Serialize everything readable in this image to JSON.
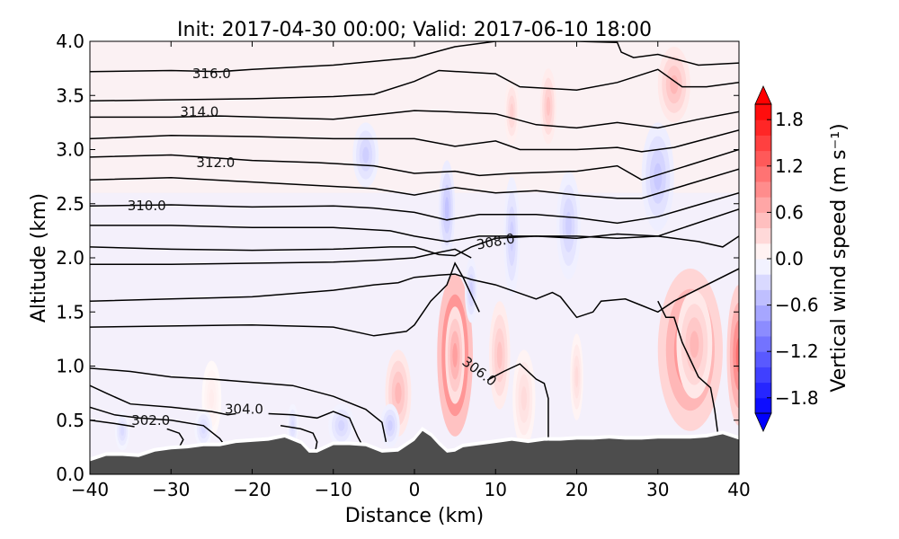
{
  "chart_data": {
    "type": "contourf",
    "title": "Init: 2017-04-30 00:00; Valid: 2017-06-10 18:00",
    "xlabel": "Distance (km)",
    "ylabel": "Altitude (km)",
    "xlim": [
      -40,
      40
    ],
    "ylim": [
      0.0,
      4.0
    ],
    "xticks": [
      -40,
      -30,
      -20,
      -10,
      0,
      10,
      20,
      30,
      40
    ],
    "xtick_labels": [
      "−40",
      "−30",
      "−20",
      "−10",
      "0",
      "10",
      "20",
      "30",
      "40"
    ],
    "yticks": [
      0.0,
      0.5,
      1.0,
      1.5,
      2.0,
      2.5,
      3.0,
      3.5,
      4.0
    ],
    "ytick_labels": [
      "0.0",
      "0.5",
      "1.0",
      "1.5",
      "2.0",
      "2.5",
      "3.0",
      "3.5",
      "4.0"
    ],
    "colorbar": {
      "label": "Vertical wind speed (m s⁻¹)",
      "range": [
        -2.0,
        2.0
      ],
      "step": 0.2,
      "extend": "both",
      "ticks": [
        1.8,
        1.2,
        0.6,
        0.0,
        -0.6,
        -1.2,
        -1.8
      ],
      "tick_labels": [
        "1.8",
        "1.2",
        "0.6",
        "0.0",
        "−0.6",
        "−1.2",
        "−1.8"
      ],
      "cmap": "bwr",
      "low_color": "#0000ff",
      "high_color": "#ff0000",
      "mid_color": "#ffffff"
    },
    "terrain": {
      "color": "#4d4d4d",
      "x": [
        -40,
        -38,
        -36,
        -34,
        -32,
        -30,
        -28,
        -26,
        -24,
        -22,
        -20,
        -18,
        -16,
        -14,
        -13,
        -12,
        -10,
        -8,
        -6,
        -4,
        -2,
        0,
        1,
        2,
        3,
        4,
        5,
        6,
        8,
        10,
        12,
        14,
        16,
        18,
        20,
        22,
        24,
        26,
        28,
        30,
        32,
        34,
        36,
        38,
        40
      ],
      "height": [
        0.12,
        0.17,
        0.17,
        0.16,
        0.21,
        0.23,
        0.24,
        0.26,
        0.26,
        0.29,
        0.3,
        0.31,
        0.34,
        0.28,
        0.2,
        0.2,
        0.27,
        0.27,
        0.26,
        0.2,
        0.21,
        0.31,
        0.4,
        0.35,
        0.27,
        0.2,
        0.21,
        0.25,
        0.27,
        0.29,
        0.31,
        0.29,
        0.31,
        0.31,
        0.32,
        0.32,
        0.33,
        0.32,
        0.32,
        0.33,
        0.33,
        0.33,
        0.34,
        0.37,
        0.32
      ]
    },
    "contour_labels": [
      {
        "value": "316.0",
        "x": -25,
        "y": 3.7
      },
      {
        "value": "314.0",
        "x": -26.5,
        "y": 3.35
      },
      {
        "value": "312.0",
        "x": -24.5,
        "y": 2.88
      },
      {
        "value": "310.0",
        "x": -33,
        "y": 2.48
      },
      {
        "value": "308.0",
        "x": 10,
        "y": 2.15
      },
      {
        "value": "306.0",
        "x": 8,
        "y": 0.95
      },
      {
        "value": "304.0",
        "x": -21,
        "y": 0.6
      },
      {
        "value": "302.0",
        "x": -32.5,
        "y": 0.5
      }
    ],
    "theta_contours": [
      {
        "level": 316.0,
        "x": [
          -40,
          -30,
          -24,
          -20,
          -10,
          0,
          5,
          10,
          20,
          25,
          25.5,
          27,
          30,
          35,
          40
        ],
        "y": [
          3.72,
          3.73,
          3.72,
          3.74,
          3.78,
          3.85,
          3.95,
          4.0,
          4.0,
          3.99,
          3.9,
          3.85,
          3.88,
          3.78,
          3.8
        ]
      },
      {
        "level": 315.0,
        "x": [
          -40,
          -30,
          -20,
          -10,
          -5,
          0,
          3,
          10,
          13,
          20,
          25,
          30,
          33,
          36,
          40
        ],
        "y": [
          3.45,
          3.46,
          3.47,
          3.49,
          3.51,
          3.63,
          3.73,
          3.7,
          3.58,
          3.55,
          3.62,
          3.74,
          3.58,
          3.58,
          3.62
        ]
      },
      {
        "level": 314.0,
        "x": [
          -40,
          -30,
          -24,
          -10,
          0,
          4,
          10,
          15,
          20,
          25,
          30,
          35,
          40
        ],
        "y": [
          3.3,
          3.3,
          3.31,
          3.28,
          3.36,
          3.35,
          3.33,
          3.23,
          3.2,
          3.25,
          3.2,
          3.28,
          3.35
        ]
      },
      {
        "level": 313.0,
        "x": [
          -40,
          -30,
          -20,
          -10,
          0,
          5,
          10,
          13,
          20,
          25,
          28,
          32,
          40
        ],
        "y": [
          3.1,
          3.13,
          3.12,
          3.1,
          3.1,
          3.03,
          3.08,
          3.0,
          3.0,
          3.02,
          2.98,
          3.02,
          3.18
        ]
      },
      {
        "level": 312.0,
        "x": [
          -40,
          -30,
          -20,
          -12,
          -5,
          0,
          5,
          8,
          12,
          20,
          25,
          28,
          40
        ],
        "y": [
          2.93,
          2.95,
          2.9,
          2.88,
          2.85,
          2.78,
          2.8,
          2.76,
          2.78,
          2.8,
          2.85,
          2.72,
          3.0
        ]
      },
      {
        "level": 311.0,
        "x": [
          -40,
          -30,
          -20,
          -10,
          -5,
          0,
          5,
          10,
          15,
          20,
          25,
          28,
          40
        ],
        "y": [
          2.72,
          2.74,
          2.7,
          2.66,
          2.64,
          2.58,
          2.65,
          2.6,
          2.62,
          2.58,
          2.55,
          2.55,
          2.82
        ]
      },
      {
        "level": 310.0,
        "x": [
          -40,
          -30,
          -20,
          -10,
          -5,
          0,
          4,
          8,
          15,
          20,
          25,
          30,
          40
        ],
        "y": [
          2.48,
          2.49,
          2.47,
          2.48,
          2.46,
          2.42,
          2.35,
          2.4,
          2.4,
          2.37,
          2.32,
          2.38,
          2.6
        ]
      },
      {
        "level": 309.0,
        "x": [
          -40,
          -30,
          -20,
          -10,
          -3,
          0,
          4,
          8,
          15,
          20,
          25,
          30,
          40
        ],
        "y": [
          2.3,
          2.3,
          2.28,
          2.28,
          2.25,
          2.2,
          2.15,
          2.2,
          2.2,
          2.2,
          2.18,
          2.2,
          2.45
        ]
      },
      {
        "level": 308.0,
        "x": [
          -40,
          -30,
          -20,
          -10,
          -3,
          0,
          3,
          5,
          6,
          7,
          10,
          15,
          20,
          25,
          30,
          35,
          38,
          40
        ],
        "y": [
          2.1,
          2.08,
          2.07,
          2.08,
          2.1,
          2.1,
          2.03,
          2.02,
          2.06,
          2.1,
          2.18,
          2.2,
          2.18,
          2.22,
          2.2,
          2.15,
          2.1,
          2.2
        ]
      },
      {
        "level": 307.5,
        "x": [
          -40,
          -30,
          -20,
          -10,
          -4,
          0,
          3,
          5,
          7
        ],
        "y": [
          1.94,
          1.94,
          1.95,
          1.96,
          1.98,
          2.0,
          2.05,
          2.08,
          2.0
        ]
      },
      {
        "level": 307.0,
        "x": [
          -40,
          -30,
          -20,
          -10,
          -5,
          -2,
          0,
          3,
          5,
          7,
          10,
          15,
          17,
          18,
          20,
          22,
          23,
          26,
          28,
          30,
          32,
          40
        ],
        "y": [
          1.6,
          1.62,
          1.64,
          1.7,
          1.75,
          1.77,
          1.82,
          1.84,
          1.85,
          1.8,
          1.75,
          1.62,
          1.68,
          1.64,
          1.45,
          1.5,
          1.6,
          1.62,
          1.56,
          1.5,
          1.6,
          1.9
        ]
      },
      {
        "level": 306.5,
        "x": [
          -40,
          -30,
          -20,
          -10,
          -5,
          -1,
          0,
          2,
          4,
          5,
          6,
          8
        ],
        "y": [
          1.36,
          1.37,
          1.38,
          1.36,
          1.28,
          1.32,
          1.38,
          1.6,
          1.75,
          1.95,
          1.82,
          1.5
        ]
      },
      {
        "level": 306.0,
        "x": [
          9,
          11,
          13,
          15,
          16,
          16.5,
          16.5
        ],
        "y": [
          0.87,
          0.95,
          1.02,
          0.88,
          0.84,
          0.7,
          0.28
        ]
      },
      {
        "level": 306.0,
        "x": [
          30,
          31,
          32,
          33,
          35,
          36.5,
          37,
          37.5
        ],
        "y": [
          1.6,
          1.45,
          1.45,
          1.22,
          0.9,
          0.8,
          0.6,
          0.32
        ]
      },
      {
        "level": 305.0,
        "x": [
          -40,
          -35,
          -30,
          -25,
          -20,
          -15,
          -10,
          -6,
          -4,
          -3.5
        ],
        "y": [
          0.98,
          0.95,
          0.9,
          0.88,
          0.85,
          0.82,
          0.72,
          0.6,
          0.48,
          0.3
        ]
      },
      {
        "level": 304.0,
        "x": [
          -40,
          -38,
          -35,
          -30,
          -25,
          -23,
          -22
        ],
        "y": [
          0.82,
          0.75,
          0.65,
          0.62,
          0.58,
          0.55,
          0.56
        ]
      },
      {
        "level": 304.0,
        "x": [
          -18,
          -15,
          -12,
          -10,
          -8,
          -7,
          -6.5
        ],
        "y": [
          0.56,
          0.55,
          0.52,
          0.58,
          0.52,
          0.35,
          0.28
        ]
      },
      {
        "level": 303.0,
        "x": [
          -40,
          -37,
          -34,
          -30,
          -26,
          -24,
          -23.5
        ],
        "y": [
          0.62,
          0.55,
          0.52,
          0.5,
          0.45,
          0.33,
          0.28
        ]
      },
      {
        "level": 303.0,
        "x": [
          -16.5,
          -14,
          -12.5,
          -12,
          -12.2
        ],
        "y": [
          0.45,
          0.42,
          0.38,
          0.3,
          0.22
        ]
      },
      {
        "level": 302.0,
        "x": [
          -40,
          -37,
          -34.5
        ],
        "y": [
          0.5,
          0.47,
          0.44
        ]
      },
      {
        "level": 302.0,
        "x": [
          -30.5,
          -29,
          -28.5,
          -29
        ],
        "y": [
          0.42,
          0.38,
          0.32,
          0.25
        ]
      }
    ],
    "w_features": [
      {
        "x": 5,
        "y": 1.1,
        "rx": 2.2,
        "ry": 0.75,
        "w": 1.6
      },
      {
        "x": 5,
        "y": 1.1,
        "rx": 1.2,
        "ry": 0.45,
        "w": 0.8
      },
      {
        "x": 34,
        "y": 1.15,
        "rx": 4.0,
        "ry": 0.75,
        "w": 1.1
      },
      {
        "x": 34.5,
        "y": 1.2,
        "rx": 2.2,
        "ry": 0.5,
        "w": 0.6
      },
      {
        "x": 40,
        "y": 1.1,
        "rx": 1.5,
        "ry": 0.65,
        "w": 1.2
      },
      {
        "x": -2,
        "y": 0.75,
        "rx": 1.6,
        "ry": 0.4,
        "w": 0.6
      },
      {
        "x": 10.5,
        "y": 1.1,
        "rx": 1.3,
        "ry": 0.5,
        "w": 0.5
      },
      {
        "x": 13.5,
        "y": 0.7,
        "rx": 1.4,
        "ry": 0.45,
        "w": 0.3
      },
      {
        "x": 20,
        "y": 0.9,
        "rx": 0.8,
        "ry": 0.4,
        "w": 0.3
      },
      {
        "x": 32,
        "y": 3.6,
        "rx": 2.0,
        "ry": 0.35,
        "w": 0.6
      },
      {
        "x": 16.5,
        "y": 3.4,
        "rx": 1.0,
        "ry": 0.35,
        "w": 0.5
      },
      {
        "x": 12,
        "y": 3.35,
        "rx": 0.9,
        "ry": 0.3,
        "w": 0.4
      },
      {
        "x": -25,
        "y": 0.7,
        "rx": 1.2,
        "ry": 0.35,
        "w": 0.15
      },
      {
        "x": 4,
        "y": 2.45,
        "rx": 1.0,
        "ry": 0.45,
        "w": -0.5
      },
      {
        "x": 7,
        "y": 1.7,
        "rx": 0.8,
        "ry": 0.3,
        "w": -0.4
      },
      {
        "x": 12,
        "y": 2.2,
        "rx": 1.0,
        "ry": 0.55,
        "w": -0.4
      },
      {
        "x": 19,
        "y": 2.3,
        "rx": 1.5,
        "ry": 0.5,
        "w": -0.4
      },
      {
        "x": 30,
        "y": 2.75,
        "rx": 2.0,
        "ry": 0.5,
        "w": -0.45
      },
      {
        "x": -6,
        "y": 2.95,
        "rx": 1.6,
        "ry": 0.3,
        "w": -0.4
      },
      {
        "x": -3,
        "y": 0.45,
        "rx": 1.2,
        "ry": 0.2,
        "w": -0.4
      },
      {
        "x": -9,
        "y": 0.45,
        "rx": 1.6,
        "ry": 0.2,
        "w": -0.35
      },
      {
        "x": -15,
        "y": 0.45,
        "rx": 0.7,
        "ry": 0.2,
        "w": -0.3
      },
      {
        "x": -26,
        "y": 0.42,
        "rx": 1.1,
        "ry": 0.18,
        "w": -0.3
      },
      {
        "x": -36,
        "y": 0.4,
        "rx": 0.9,
        "ry": 0.18,
        "w": -0.3
      }
    ]
  }
}
